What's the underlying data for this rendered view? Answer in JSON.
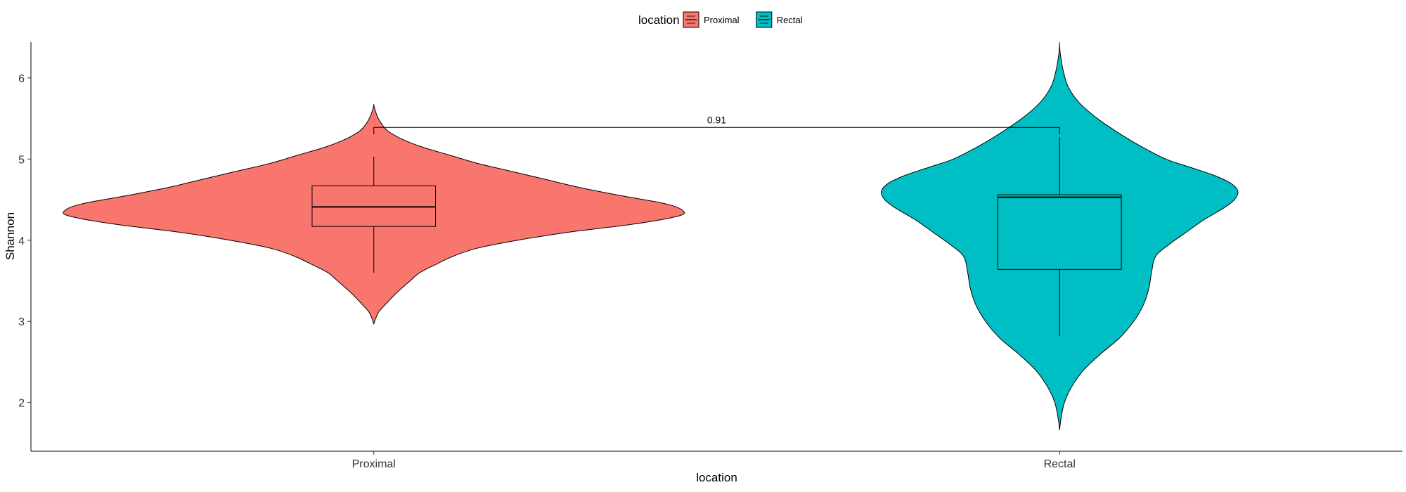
{
  "chart_data": {
    "type": "violin",
    "xlabel": "location",
    "ylabel": "Shannon",
    "categories": [
      "Proximal",
      "Rectal"
    ],
    "ylim": [
      1.4,
      6.7
    ],
    "yticks": [
      2,
      3,
      4,
      5,
      6
    ],
    "grid": false,
    "legend": {
      "title": "location",
      "position": "top",
      "entries": [
        {
          "label": "Proximal",
          "color": "#F8766D"
        },
        {
          "label": "Rectal",
          "color": "#00BFC4"
        }
      ]
    },
    "series": [
      {
        "name": "Proximal",
        "color": "#F8766D",
        "violin": {
          "range": [
            2.97,
            5.66
          ],
          "density": [
            [
              2.97,
              0.0
            ],
            [
              3.1,
              0.06
            ],
            [
              3.2,
              0.16
            ],
            [
              3.35,
              0.33
            ],
            [
              3.5,
              0.53
            ],
            [
              3.6,
              0.67
            ],
            [
              3.7,
              0.9
            ],
            [
              3.8,
              1.15
            ],
            [
              3.9,
              1.5
            ],
            [
              4.0,
              2.1
            ],
            [
              4.1,
              2.85
            ],
            [
              4.2,
              3.8
            ],
            [
              4.3,
              4.45
            ],
            [
              4.37,
              4.5
            ],
            [
              4.45,
              4.25
            ],
            [
              4.55,
              3.6
            ],
            [
              4.65,
              3.0
            ],
            [
              4.75,
              2.5
            ],
            [
              4.85,
              2.0
            ],
            [
              4.95,
              1.5
            ],
            [
              5.05,
              1.1
            ],
            [
              5.15,
              0.7
            ],
            [
              5.25,
              0.4
            ],
            [
              5.35,
              0.2
            ],
            [
              5.45,
              0.1
            ],
            [
              5.55,
              0.04
            ],
            [
              5.66,
              0.0
            ]
          ]
        },
        "box": {
          "lower_whisker": 3.6,
          "q1": 4.17,
          "median": 4.41,
          "q3": 4.67,
          "upper_whisker": 5.03
        }
      },
      {
        "name": "Rectal",
        "color": "#00BFC4",
        "violin": {
          "range": [
            1.66,
            6.42
          ],
          "density": [
            [
              1.66,
              0.0
            ],
            [
              1.8,
              0.02
            ],
            [
              2.0,
              0.07
            ],
            [
              2.2,
              0.18
            ],
            [
              2.4,
              0.35
            ],
            [
              2.6,
              0.6
            ],
            [
              2.8,
              0.88
            ],
            [
              3.0,
              1.08
            ],
            [
              3.2,
              1.22
            ],
            [
              3.4,
              1.3
            ],
            [
              3.6,
              1.34
            ],
            [
              3.8,
              1.4
            ],
            [
              3.95,
              1.6
            ],
            [
              4.1,
              1.85
            ],
            [
              4.25,
              2.1
            ],
            [
              4.4,
              2.4
            ],
            [
              4.5,
              2.55
            ],
            [
              4.6,
              2.6
            ],
            [
              4.7,
              2.5
            ],
            [
              4.8,
              2.25
            ],
            [
              4.9,
              1.9
            ],
            [
              5.0,
              1.55
            ],
            [
              5.15,
              1.2
            ],
            [
              5.3,
              0.9
            ],
            [
              5.5,
              0.55
            ],
            [
              5.7,
              0.28
            ],
            [
              5.9,
              0.12
            ],
            [
              6.1,
              0.05
            ],
            [
              6.3,
              0.01
            ],
            [
              6.42,
              0.0
            ]
          ]
        },
        "box": {
          "lower_whisker": 2.82,
          "q1": 3.64,
          "median": 4.53,
          "q3": 4.56,
          "upper_whisker": 5.27
        }
      }
    ],
    "annotations": [
      {
        "text": "0.91",
        "from": "Proximal",
        "to": "Rectal",
        "y": 5.39
      }
    ]
  }
}
